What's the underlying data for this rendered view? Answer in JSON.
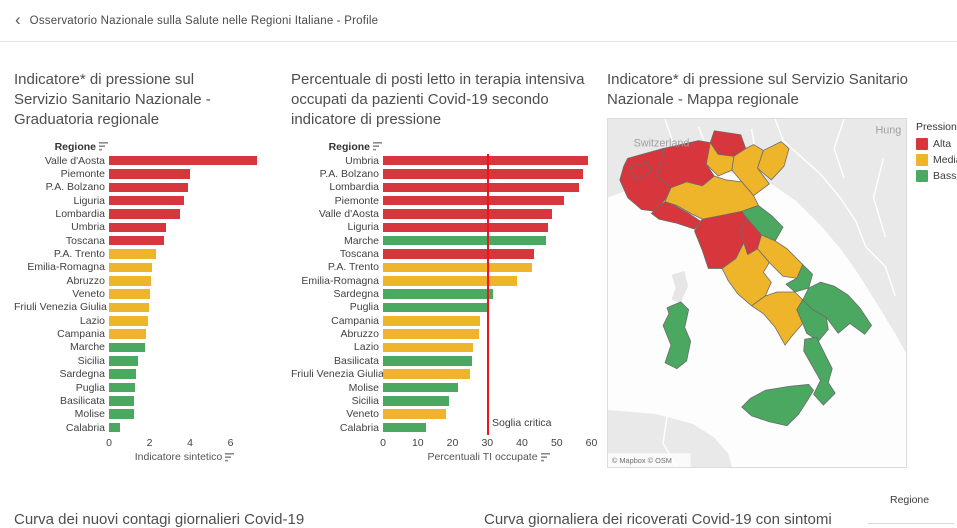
{
  "header": {
    "back": "‹",
    "title": "Osservatorio Nazionale sulla Salute nelle Regioni Italiane - Profile"
  },
  "palette": {
    "alta": "#d8363d",
    "media": "#eeb42a",
    "bassa": "#4aa860",
    "reference_line": "#f0131e"
  },
  "chart_data": [
    {
      "type": "bar",
      "orientation": "horizontal",
      "title": "Indicatore* di pressione sul Servizio Sanitario Nazionale - Graduatoria regionale",
      "col_header": "Regione",
      "xlabel": "Indicatore sintetico",
      "xlim": [
        0,
        7.5
      ],
      "xticks": [
        0,
        2,
        4,
        6
      ],
      "rows": [
        {
          "label": "Valle d'Aosta",
          "value": 7.3,
          "level": "alta"
        },
        {
          "label": "Piemonte",
          "value": 4.0,
          "level": "alta"
        },
        {
          "label": "P.A. Bolzano",
          "value": 3.9,
          "level": "alta"
        },
        {
          "label": "Liguria",
          "value": 3.7,
          "level": "alta"
        },
        {
          "label": "Lombardia",
          "value": 3.5,
          "level": "alta"
        },
        {
          "label": "Umbria",
          "value": 2.8,
          "level": "alta"
        },
        {
          "label": "Toscana",
          "value": 2.7,
          "level": "alta"
        },
        {
          "label": "P.A. Trento",
          "value": 2.3,
          "level": "media"
        },
        {
          "label": "Emilia-Romagna",
          "value": 2.1,
          "level": "media"
        },
        {
          "label": "Abruzzo",
          "value": 2.05,
          "level": "media"
        },
        {
          "label": "Veneto",
          "value": 2.0,
          "level": "media"
        },
        {
          "label": "Friuli Venezia Giulia",
          "value": 1.95,
          "level": "media"
        },
        {
          "label": "Lazio",
          "value": 1.9,
          "level": "media"
        },
        {
          "label": "Campania",
          "value": 1.8,
          "level": "media"
        },
        {
          "label": "Marche",
          "value": 1.75,
          "level": "bassa"
        },
        {
          "label": "Sicilia",
          "value": 1.45,
          "level": "bassa"
        },
        {
          "label": "Sardegna",
          "value": 1.35,
          "level": "bassa"
        },
        {
          "label": "Puglia",
          "value": 1.3,
          "level": "bassa"
        },
        {
          "label": "Basilicata",
          "value": 1.25,
          "level": "bassa"
        },
        {
          "label": "Molise",
          "value": 1.25,
          "level": "bassa"
        },
        {
          "label": "Calabria",
          "value": 0.55,
          "level": "bassa"
        }
      ]
    },
    {
      "type": "bar",
      "orientation": "horizontal",
      "title": "Percentuale di posti letto in terapia intensiva occupati da pazienti Covid-19 secondo indicatore di pressione",
      "col_header": "Regione",
      "xlabel": "Percentuali TI occupate",
      "xlim": [
        0,
        61
      ],
      "xticks": [
        0,
        10,
        20,
        30,
        40,
        50,
        60
      ],
      "reference_line": {
        "value": 30,
        "label": "Soglia critica"
      },
      "rows": [
        {
          "label": "Umbria",
          "value": 59,
          "level": "alta"
        },
        {
          "label": "P.A. Bolzano",
          "value": 57.5,
          "level": "alta"
        },
        {
          "label": "Lombardia",
          "value": 56.5,
          "level": "alta"
        },
        {
          "label": "Piemonte",
          "value": 52,
          "level": "alta"
        },
        {
          "label": "Valle d'Aosta",
          "value": 48.5,
          "level": "alta"
        },
        {
          "label": "Liguria",
          "value": 47.5,
          "level": "alta"
        },
        {
          "label": "Marche",
          "value": 47,
          "level": "bassa"
        },
        {
          "label": "Toscana",
          "value": 43.5,
          "level": "alta"
        },
        {
          "label": "P.A. Trento",
          "value": 43,
          "level": "media"
        },
        {
          "label": "Emilia-Romagna",
          "value": 38.5,
          "level": "media"
        },
        {
          "label": "Sardegna",
          "value": 31.5,
          "level": "bassa"
        },
        {
          "label": "Puglia",
          "value": 30.5,
          "level": "bassa"
        },
        {
          "label": "Campania",
          "value": 28,
          "level": "media"
        },
        {
          "label": "Abruzzo",
          "value": 27.5,
          "level": "media"
        },
        {
          "label": "Lazio",
          "value": 26,
          "level": "media"
        },
        {
          "label": "Basilicata",
          "value": 25.5,
          "level": "bassa"
        },
        {
          "label": "Friuli Venezia Giulia",
          "value": 25,
          "level": "media"
        },
        {
          "label": "Molise",
          "value": 21.5,
          "level": "bassa"
        },
        {
          "label": "Sicilia",
          "value": 19,
          "level": "bassa"
        },
        {
          "label": "Veneto",
          "value": 18,
          "level": "media"
        },
        {
          "label": "Calabria",
          "value": 12.5,
          "level": "bassa"
        }
      ]
    }
  ],
  "map_panel": {
    "title": "Indicatore* di pressione sul Servizio Sanitario Nazionale - Mappa regionale",
    "labels": [
      "Switzerland",
      "Hung"
    ],
    "attribution": "© Mapbox © OSM",
    "legend": {
      "title": "Pressione",
      "items": [
        {
          "label": "Alta",
          "level": "alta"
        },
        {
          "label": "Media",
          "level": "media"
        },
        {
          "label": "Bassa",
          "level": "bassa"
        }
      ]
    },
    "regions": [
      {
        "name": "Valle d'Aosta",
        "level": "alta"
      },
      {
        "name": "Piemonte",
        "level": "alta"
      },
      {
        "name": "Lombardia",
        "level": "alta"
      },
      {
        "name": "Liguria",
        "level": "alta"
      },
      {
        "name": "P.A. Bolzano",
        "level": "alta"
      },
      {
        "name": "Toscana",
        "level": "alta"
      },
      {
        "name": "Umbria",
        "level": "alta"
      },
      {
        "name": "P.A. Trento",
        "level": "media"
      },
      {
        "name": "Veneto",
        "level": "media"
      },
      {
        "name": "Friuli Venezia Giulia",
        "level": "media"
      },
      {
        "name": "Emilia-Romagna",
        "level": "media"
      },
      {
        "name": "Lazio",
        "level": "media"
      },
      {
        "name": "Abruzzo",
        "level": "media"
      },
      {
        "name": "Campania",
        "level": "media"
      },
      {
        "name": "Marche",
        "level": "bassa"
      },
      {
        "name": "Molise",
        "level": "bassa"
      },
      {
        "name": "Puglia",
        "level": "bassa"
      },
      {
        "name": "Basilicata",
        "level": "bassa"
      },
      {
        "name": "Calabria",
        "level": "bassa"
      },
      {
        "name": "Sicilia",
        "level": "bassa"
      },
      {
        "name": "Sardegna",
        "level": "bassa"
      }
    ]
  },
  "bottom": {
    "left_title": "Curva dei nuovi contagi giornalieri Covid-19",
    "right_title": "Curva giornaliera dei ricoverati Covid-19 con sintomi",
    "filter_label": "Regione"
  }
}
